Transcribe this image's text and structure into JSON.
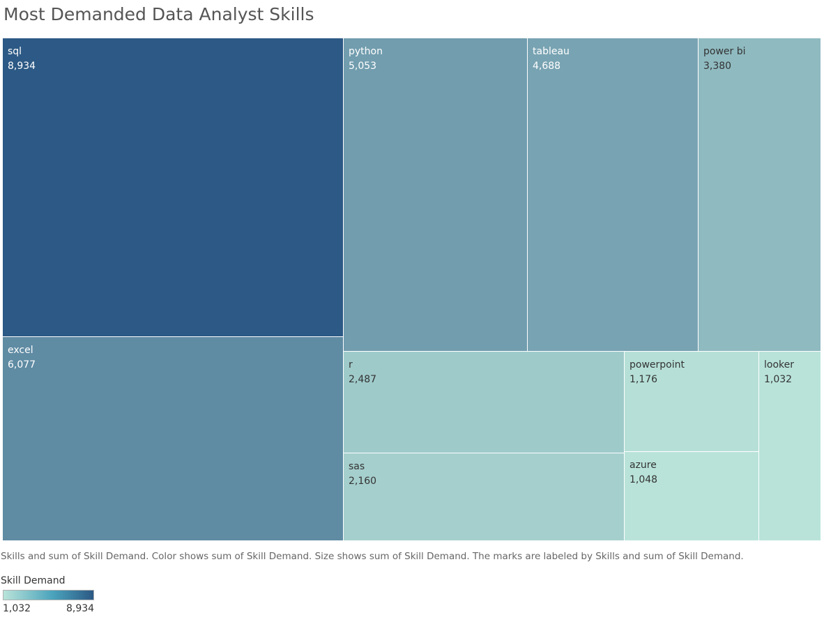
{
  "chart_data": {
    "type": "treemap",
    "title": "Most Demanded Data Analyst Skills",
    "items": [
      {
        "label": "sql",
        "value": 8934,
        "value_label": "8,934"
      },
      {
        "label": "excel",
        "value": 6077,
        "value_label": "6,077"
      },
      {
        "label": "python",
        "value": 5053,
        "value_label": "5,053"
      },
      {
        "label": "tableau",
        "value": 4688,
        "value_label": "4,688"
      },
      {
        "label": "power bi",
        "value": 3380,
        "value_label": "3,380"
      },
      {
        "label": "r",
        "value": 2487,
        "value_label": "2,487"
      },
      {
        "label": "sas",
        "value": 2160,
        "value_label": "2,160"
      },
      {
        "label": "powerpoint",
        "value": 1176,
        "value_label": "1,176"
      },
      {
        "label": "azure",
        "value": 1048,
        "value_label": "1,048"
      },
      {
        "label": "looker",
        "value": 1032,
        "value_label": "1,032"
      }
    ],
    "color_scale": {
      "min": 1032,
      "max": 8934,
      "min_color": "#b9e3d9",
      "max_color": "#2c5985"
    },
    "caption": "Skills and sum of Skill Demand.  Color shows sum of Skill Demand.  Size shows sum of Skill Demand.  The marks are labeled by Skills and sum of Skill Demand.",
    "legend": {
      "title": "Skill Demand",
      "min_label": "1,032",
      "max_label": "8,934"
    }
  }
}
